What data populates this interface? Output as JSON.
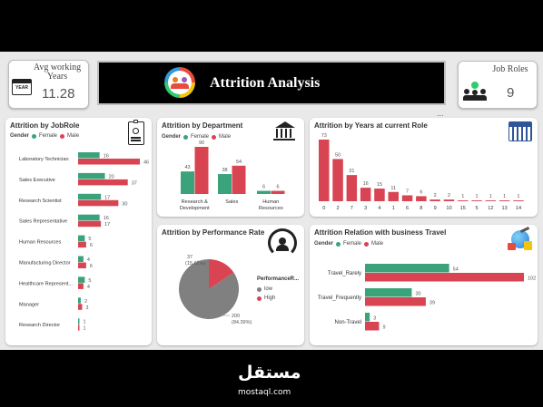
{
  "header": {
    "title": "Attrition Analysis",
    "kpi_left": {
      "label": "Avg working Years",
      "icon_label": "YEAR",
      "value": "11.28"
    },
    "kpi_right": {
      "label": "Job Roles",
      "value": "9"
    },
    "more_label": "..."
  },
  "legend": {
    "gender_label": "Gender",
    "female": "Female",
    "male": "Male"
  },
  "colors": {
    "female": "#3aa37a",
    "male": "#d94452",
    "banner": "#000000",
    "single": "#d94452"
  },
  "chart_data": [
    {
      "id": "jobrole",
      "type": "bar",
      "orientation": "horizontal",
      "title": "Attrition by JobRole",
      "categories": [
        "Laboratory Technician",
        "Sales Executive",
        "Research Scientist",
        "Sales Representative",
        "Human Resources",
        "Manufacturing Director",
        "Healthcare Represent...",
        "Manager",
        "Research Director"
      ],
      "series": [
        {
          "name": "Female",
          "values": [
            16,
            20,
            17,
            16,
            5,
            4,
            5,
            2,
            1
          ]
        },
        {
          "name": "Male",
          "values": [
            46,
            37,
            30,
            17,
            6,
            6,
            4,
            3,
            1
          ]
        }
      ]
    },
    {
      "id": "department",
      "type": "bar",
      "title": "Attrition by Department",
      "categories": [
        "Research & Development",
        "Sales",
        "Human Resources"
      ],
      "series": [
        {
          "name": "Female",
          "values": [
            43,
            38,
            6
          ]
        },
        {
          "name": "Male",
          "values": [
            90,
            54,
            6
          ]
        }
      ]
    },
    {
      "id": "years",
      "type": "bar",
      "title": "Attrition by Years at current Role",
      "categories": [
        "0",
        "2",
        "7",
        "3",
        "4",
        "1",
        "6",
        "8",
        "9",
        "10",
        "15",
        "5",
        "12",
        "13",
        "14"
      ],
      "values": [
        73,
        50,
        31,
        16,
        15,
        11,
        7,
        6,
        2,
        2,
        1,
        1,
        1,
        1,
        1
      ]
    },
    {
      "id": "performance",
      "type": "pie",
      "title": "Attrition by Performance Rate",
      "legend_title": "PerformanceR...",
      "slices": [
        {
          "name": "low",
          "value": 200,
          "label": "200 (84.39%)",
          "color": "#808080"
        },
        {
          "name": "High",
          "value": 37,
          "label": "37 (15.61%)",
          "color": "#d94452"
        }
      ]
    },
    {
      "id": "travel",
      "type": "bar",
      "orientation": "horizontal",
      "title": "Attrition Relation with business Travel",
      "categories": [
        "Travel_Rarely",
        "Travel_Frequently",
        "Non-Travel"
      ],
      "series": [
        {
          "name": "Female",
          "values": [
            54,
            30,
            3
          ]
        },
        {
          "name": "Male",
          "values": [
            102,
            39,
            9
          ]
        }
      ]
    }
  ],
  "watermark": {
    "arabic": "مستقل",
    "latin": "mostaql.com"
  }
}
